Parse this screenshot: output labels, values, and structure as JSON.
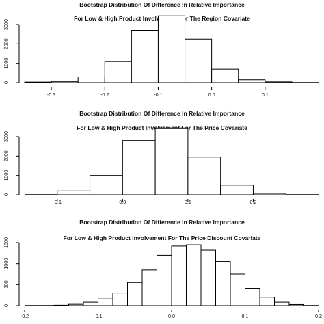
{
  "chart_data": [
    {
      "type": "bar",
      "title": "Bootstrap Distribution Of Difference In Relative Importance",
      "subtitle": "For Low & High Product Involvement For The Region Covariate",
      "xlabel": "",
      "ylabel": "",
      "xlim": [
        -0.35,
        0.2
      ],
      "ylim": [
        0,
        3000
      ],
      "xticks": [
        "-0.3",
        "-0.2",
        "-0.1",
        "0.0",
        "0.1"
      ],
      "yticks": [
        "0",
        "1000",
        "2000",
        "3000"
      ],
      "bin_edges": [
        -0.35,
        -0.3,
        -0.25,
        -0.2,
        -0.15,
        -0.1,
        -0.05,
        0.0,
        0.05,
        0.1,
        0.15
      ],
      "values": [
        30,
        60,
        300,
        1100,
        2700,
        3450,
        2250,
        700,
        150,
        40
      ]
    },
    {
      "type": "bar",
      "title": "Bootstrap Distribution Of Difference In Relative Importance",
      "subtitle": "For Low & High Product Involvement For The Price Covariate",
      "xlabel": "",
      "ylabel": "",
      "xlim": [
        -0.15,
        0.3
      ],
      "ylim": [
        0,
        3000
      ],
      "xticks": [
        "-0.1",
        "0.0",
        "0.1",
        "0.2"
      ],
      "yticks": [
        "0",
        "1000",
        "2000",
        "3000"
      ],
      "bin_edges": [
        -0.1,
        -0.05,
        0.0,
        0.05,
        0.1,
        0.15,
        0.2,
        0.25
      ],
      "values": [
        200,
        1000,
        2800,
        3450,
        1950,
        500,
        70
      ]
    },
    {
      "type": "bar",
      "title": "Bootstrap Distribution Of Difference In Relative Importance",
      "subtitle": "For Low & High Product Involvement For The Price Discount Covariate",
      "xlabel": "",
      "ylabel": "",
      "xlim": [
        -0.2,
        0.2
      ],
      "ylim": [
        0,
        1500
      ],
      "xticks": [
        "-0.2",
        "-0.1",
        "0.0",
        "0.1",
        "0.2"
      ],
      "yticks": [
        "0",
        "500",
        "1000",
        "1500"
      ],
      "bin_edges": [
        -0.16,
        -0.14,
        -0.12,
        -0.1,
        -0.08,
        -0.06,
        -0.04,
        -0.02,
        0.0,
        0.02,
        0.04,
        0.06,
        0.08,
        0.1,
        0.12,
        0.14,
        0.16,
        0.18
      ],
      "values": [
        10,
        30,
        80,
        160,
        300,
        550,
        850,
        1200,
        1420,
        1450,
        1320,
        1050,
        750,
        400,
        200,
        80,
        25
      ]
    }
  ]
}
